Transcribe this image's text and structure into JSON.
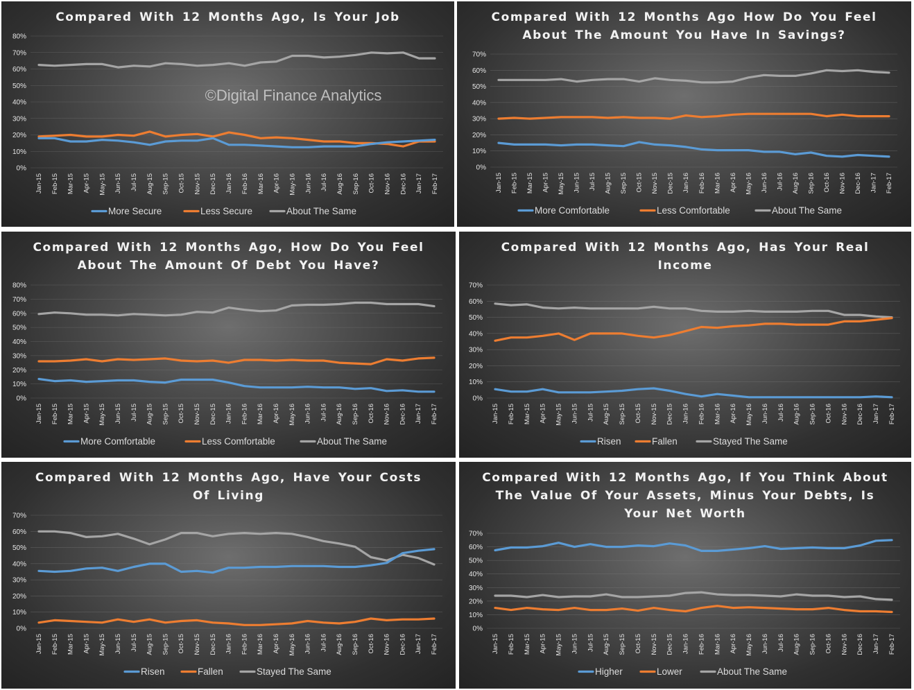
{
  "watermark": "©Digital Finance Analytics",
  "months": [
    "Jan-15",
    "Feb-15",
    "Mar-15",
    "Apr-15",
    "May-15",
    "Jun-15",
    "Jul-15",
    "Aug-15",
    "Sep-15",
    "Oct-15",
    "Nov-15",
    "Dec-15",
    "Jan-16",
    "Feb-16",
    "Mar-16",
    "Apr-16",
    "May-16",
    "Jun-16",
    "Jul-16",
    "Aug-16",
    "Sep-16",
    "Oct-16",
    "Nov-16",
    "Dec-16",
    "Jan-17",
    "Feb-17"
  ],
  "chart_data": [
    {
      "type": "line",
      "title": [
        "Compared With 12 Months Ago, Is Your Job"
      ],
      "ylim": [
        0,
        80
      ],
      "yticks": [
        "0%",
        "10%",
        "20%",
        "30%",
        "40%",
        "50%",
        "60%",
        "70%",
        "80%"
      ],
      "series": [
        {
          "name": "More Secure",
          "color": "#5b9bd5",
          "values": [
            18,
            18,
            16,
            16,
            17,
            16.5,
            15.5,
            14,
            16,
            16.5,
            16.5,
            18,
            14,
            14,
            13.5,
            13,
            12.5,
            12.5,
            13,
            13,
            13,
            14.5,
            15.5,
            16,
            16.5,
            17
          ]
        },
        {
          "name": "Less Secure",
          "color": "#ed7d31",
          "values": [
            19,
            19.5,
            20,
            19,
            19,
            20,
            19.5,
            22,
            19,
            20,
            20.5,
            19,
            21.5,
            20,
            18,
            18.5,
            18,
            17,
            16,
            16,
            15,
            15,
            14.5,
            13,
            16,
            16
          ]
        },
        {
          "name": "About The Same",
          "color": "#a5a5a5",
          "values": [
            62.5,
            62,
            62.5,
            63,
            63,
            61,
            62,
            61.5,
            63.5,
            63,
            62,
            62.5,
            63.5,
            62,
            64,
            64.5,
            68,
            68,
            67,
            67.5,
            68.5,
            70,
            69.5,
            70,
            66.5,
            66.5
          ]
        }
      ]
    },
    {
      "type": "line",
      "title": [
        "Compared With 12 Months Ago How Do You Feel",
        "About The Amount You Have In Savings?"
      ],
      "ylim": [
        0,
        70
      ],
      "yticks": [
        "0%",
        "10%",
        "20%",
        "30%",
        "40%",
        "50%",
        "60%",
        "70%"
      ],
      "series": [
        {
          "name": "More Comfortable",
          "color": "#5b9bd5",
          "values": [
            15,
            14,
            14,
            14,
            13.5,
            14,
            14,
            13.5,
            13,
            15.5,
            14,
            13.5,
            12.5,
            11,
            10.5,
            10.5,
            10.5,
            9.5,
            9.5,
            8,
            9,
            7,
            6.5,
            7.5,
            7,
            6.5
          ]
        },
        {
          "name": "Less Comfortable",
          "color": "#ed7d31",
          "values": [
            30,
            30.5,
            30,
            30.5,
            31,
            31,
            31,
            30.5,
            31,
            30.5,
            30.5,
            30,
            32,
            31,
            31.5,
            32.5,
            33,
            33,
            33,
            33,
            33,
            31.5,
            32.5,
            31.5,
            31.5,
            31.5
          ]
        },
        {
          "name": "About The Same",
          "color": "#a5a5a5",
          "values": [
            54,
            54,
            54,
            54,
            54.5,
            53,
            54,
            54.5,
            54.5,
            53,
            55,
            54,
            53.5,
            52.5,
            52.5,
            53,
            55.5,
            57,
            56.5,
            56.5,
            58,
            60,
            59.5,
            60,
            59,
            58.5
          ]
        }
      ]
    },
    {
      "type": "line",
      "title": [
        "Compared With 12 Months Ago, How Do You Feel",
        "About The Amount Of Debt You Have?"
      ],
      "ylim": [
        0,
        80
      ],
      "yticks": [
        "0%",
        "10%",
        "20%",
        "30%",
        "40%",
        "50%",
        "60%",
        "70%",
        "80%"
      ],
      "series": [
        {
          "name": "More Comfortable",
          "color": "#5b9bd5",
          "values": [
            13.5,
            12,
            12.5,
            11.5,
            12,
            12.5,
            12.5,
            11.5,
            11,
            13,
            13,
            13,
            11,
            8.5,
            7.5,
            7.5,
            7.5,
            8,
            7.5,
            7.5,
            6.5,
            7,
            5,
            5.5,
            4.5,
            4.5
          ]
        },
        {
          "name": "Less Comfortable",
          "color": "#ed7d31",
          "values": [
            26,
            26,
            26.5,
            27.5,
            26,
            27.5,
            27,
            27.5,
            28,
            26.5,
            26,
            26.5,
            25,
            27,
            27,
            26.5,
            27,
            26.5,
            26.5,
            25,
            24.5,
            24,
            27.5,
            26.5,
            28,
            28.5
          ]
        },
        {
          "name": "About The Same",
          "color": "#a5a5a5",
          "values": [
            59.5,
            60.5,
            60,
            59,
            59,
            58.5,
            59.5,
            59,
            58.5,
            59,
            61,
            60.5,
            64,
            62.5,
            61.5,
            62,
            65.5,
            66,
            66,
            66.5,
            67.5,
            67.5,
            66.5,
            66.5,
            66.5,
            65
          ]
        }
      ]
    },
    {
      "type": "line",
      "title": [
        "Compared With 12 Months Ago, Has Your Real",
        "Income"
      ],
      "ylim": [
        0,
        70
      ],
      "yticks": [
        "0%",
        "10%",
        "20%",
        "30%",
        "40%",
        "50%",
        "60%",
        "70%"
      ],
      "series": [
        {
          "name": "Risen",
          "color": "#5b9bd5",
          "values": [
            5.5,
            4,
            4,
            5.5,
            3.5,
            3.5,
            3.5,
            4,
            4.5,
            5.5,
            6,
            4.5,
            2.5,
            1,
            2.5,
            1.5,
            0.5,
            0.5,
            0.5,
            0.5,
            0.5,
            0.5,
            0.5,
            0.5,
            1,
            0.5
          ]
        },
        {
          "name": "Fallen",
          "color": "#ed7d31",
          "values": [
            35.5,
            37.5,
            37.5,
            38.5,
            40,
            36,
            40,
            40,
            40,
            38.5,
            37.5,
            39,
            41.5,
            44,
            43.5,
            44.5,
            45,
            46,
            46,
            45.5,
            45.5,
            45.5,
            47.5,
            47.5,
            48.5,
            49.5
          ]
        },
        {
          "name": "Stayed The Same",
          "color": "#a5a5a5",
          "values": [
            58.5,
            57.5,
            58,
            56,
            55.5,
            56,
            55.5,
            55.5,
            55.5,
            55.5,
            56.5,
            55.5,
            55.5,
            54,
            53.5,
            53.5,
            54,
            53.5,
            53.5,
            53.5,
            54,
            54,
            51.5,
            51.5,
            50.5,
            50
          ]
        }
      ]
    },
    {
      "type": "line",
      "title": [
        "Compared With 12 Months Ago, Have Your Costs",
        "Of Living"
      ],
      "ylim": [
        0,
        70
      ],
      "yticks": [
        "0%",
        "10%",
        "20%",
        "30%",
        "40%",
        "50%",
        "60%",
        "70%"
      ],
      "series": [
        {
          "name": "Risen",
          "color": "#5b9bd5",
          "values": [
            35.5,
            35,
            35.5,
            37,
            37.5,
            35.5,
            38,
            40,
            40,
            35,
            35.5,
            34.5,
            37.5,
            37.5,
            38,
            38,
            38.5,
            38.5,
            38.5,
            38,
            38,
            39,
            40.5,
            46.5,
            48,
            49
          ]
        },
        {
          "name": "Fallen",
          "color": "#ed7d31",
          "values": [
            3.5,
            5,
            4.5,
            4,
            3.5,
            5.5,
            4,
            5.5,
            3.5,
            4.5,
            5,
            3.5,
            3,
            2,
            2,
            2.5,
            3,
            4.5,
            3.5,
            3,
            4,
            6,
            5,
            5.5,
            5.5,
            6
          ]
        },
        {
          "name": "Stayed The Same",
          "color": "#a5a5a5",
          "values": [
            60,
            60,
            59,
            56.5,
            57,
            58.5,
            55.5,
            52,
            55,
            59,
            59,
            57,
            58.5,
            59,
            58.5,
            59,
            58.5,
            56.5,
            54,
            52.5,
            50.5,
            44,
            42,
            45.5,
            43.5,
            39.5
          ]
        }
      ]
    },
    {
      "type": "line",
      "title": [
        "Compared With 12 Months Ago, If You Think About",
        "The Value Of Your Assets, Minus Your Debts, Is",
        "Your Net Worth"
      ],
      "ylim": [
        0,
        70
      ],
      "yticks": [
        "0%",
        "10%",
        "20%",
        "30%",
        "40%",
        "50%",
        "60%",
        "70%"
      ],
      "series": [
        {
          "name": "Higher",
          "color": "#5b9bd5",
          "values": [
            57.5,
            59.5,
            59.5,
            60.5,
            63,
            60,
            62,
            60,
            60,
            61,
            60.5,
            62.5,
            61,
            57,
            57,
            58,
            59,
            60.5,
            58.5,
            59,
            59.5,
            59,
            59,
            61,
            64.5,
            65
          ]
        },
        {
          "name": "Lower",
          "color": "#ed7d31",
          "values": [
            15,
            13.5,
            15,
            14,
            13.5,
            15,
            13.5,
            13.5,
            14.5,
            13,
            15,
            13.5,
            12.5,
            15,
            16.5,
            15,
            15.5,
            15,
            14.5,
            14,
            14,
            15,
            13.5,
            12.5,
            12.5,
            12
          ]
        },
        {
          "name": "About The Same",
          "color": "#a5a5a5",
          "values": [
            24,
            24,
            23,
            24.5,
            23,
            23.5,
            23.5,
            25,
            23,
            23,
            23.5,
            24,
            26,
            26.5,
            25,
            24.5,
            24.5,
            24,
            23.5,
            25,
            24,
            24,
            23,
            23.5,
            21.5,
            21
          ]
        }
      ]
    }
  ]
}
